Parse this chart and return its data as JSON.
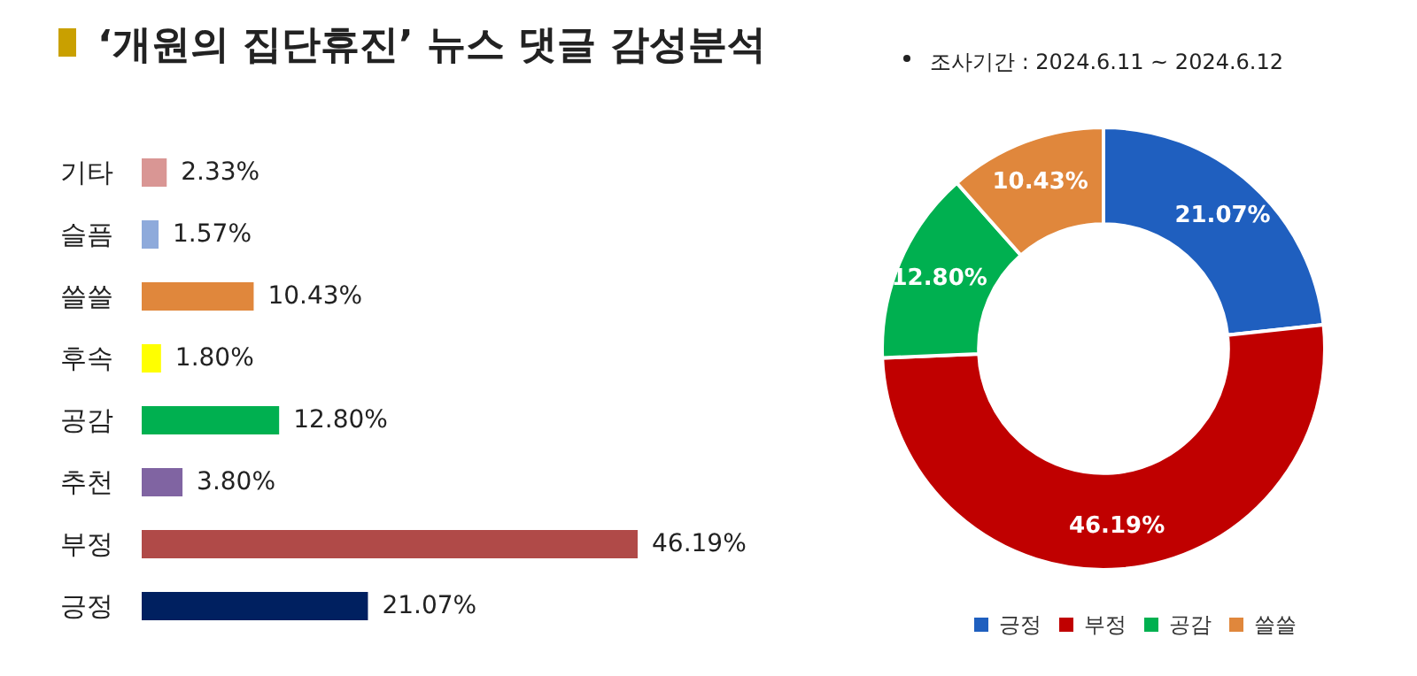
{
  "chart_data": [
    {
      "type": "bar",
      "orientation": "horizontal",
      "title": "‘개원의 집단휴진’ 뉴스 댓글 감성분석",
      "categories": [
        "기타",
        "슬픔",
        "쓸쓸",
        "후속",
        "공감",
        "추천",
        "부정",
        "긍정"
      ],
      "values": [
        2.33,
        1.57,
        10.43,
        1.8,
        12.8,
        3.8,
        46.19,
        21.07
      ],
      "colors": [
        "#d99694",
        "#8eaadb",
        "#e0873c",
        "#ffff00",
        "#00b050",
        "#8064a2",
        "#b04a48",
        "#002060"
      ],
      "value_labels": [
        "2.33%",
        "1.57%",
        "10.43%",
        "1.80%",
        "12.80%",
        "3.80%",
        "46.19%",
        "21.07%"
      ],
      "legend": false
    },
    {
      "type": "donut",
      "annotations": [
        "조사기간 : 2024.6.11 ~ 2024.6.12"
      ],
      "categories": [
        "긍정",
        "부정",
        "공감",
        "쓸쓸"
      ],
      "values": [
        21.07,
        46.19,
        12.8,
        10.43
      ],
      "colors": [
        "#1f5fbf",
        "#c00000",
        "#00b050",
        "#e0873c"
      ],
      "value_labels": [
        "21.07%",
        "46.19%",
        "12.80%",
        "10.43%"
      ],
      "legend": "bottom"
    }
  ]
}
